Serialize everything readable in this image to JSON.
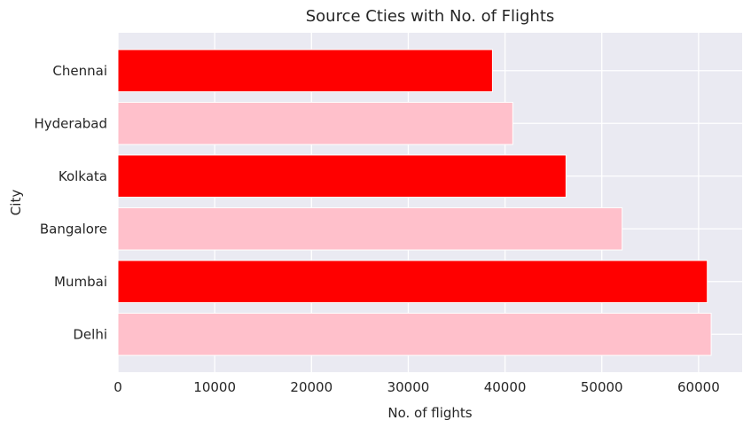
{
  "chart_data": {
    "type": "bar",
    "orientation": "horizontal",
    "title": "Source Cties with No. of Flights",
    "xlabel": "No. of flights",
    "ylabel": "City",
    "categories": [
      "Chennai",
      "Hyderabad",
      "Kolkata",
      "Bangalore",
      "Mumbai",
      "Delhi"
    ],
    "values": [
      38700,
      40800,
      46300,
      52100,
      60900,
      61300
    ],
    "bar_colors": [
      "#ff0000",
      "#ffc0cb",
      "#ff0000",
      "#ffc0cb",
      "#ff0000",
      "#ffc0cb"
    ],
    "xlim": [
      0,
      64500
    ],
    "xticks": [
      0,
      10000,
      20000,
      30000,
      40000,
      50000,
      60000
    ],
    "xtick_labels": [
      "0",
      "10000",
      "20000",
      "30000",
      "40000",
      "50000",
      "60000"
    ],
    "grid": true,
    "background": "#eaeaf2",
    "gridline_color": "#ffffff"
  }
}
